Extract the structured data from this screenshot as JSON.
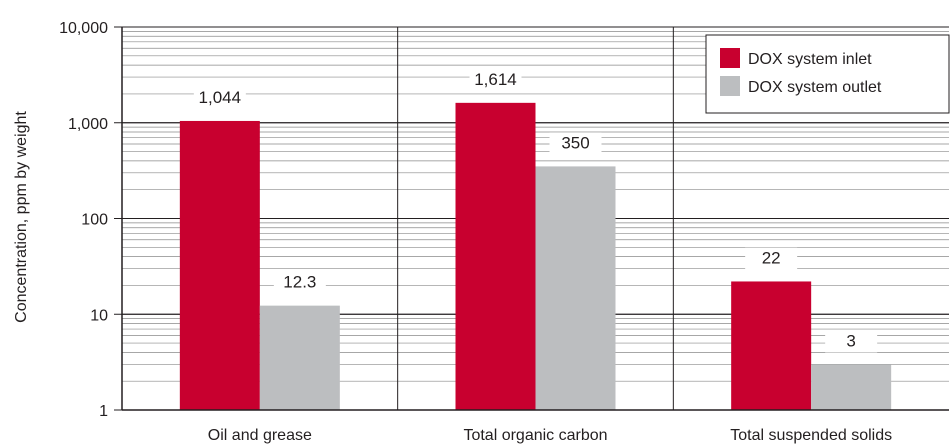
{
  "chart_data": {
    "type": "bar",
    "ylabel": "Concentration, ppm by weight",
    "xlabel": "",
    "title": "",
    "yscale": "log",
    "ylim": [
      1,
      10000
    ],
    "yticks": [
      {
        "value": 1,
        "label": "1"
      },
      {
        "value": 10,
        "label": "10"
      },
      {
        "value": 100,
        "label": "100"
      },
      {
        "value": 1000,
        "label": "1,000"
      },
      {
        "value": 10000,
        "label": "10,000"
      }
    ],
    "categories": [
      "Oil and grease",
      "Total organic carbon",
      "Total suspended solids"
    ],
    "series": [
      {
        "name": "DOX system inlet",
        "color": "#c8002f",
        "values": [
          1044,
          1614,
          22
        ],
        "labels": [
          "1,044",
          "1,614",
          "22"
        ]
      },
      {
        "name": "DOX system outlet",
        "color": "#bcbec0",
        "values": [
          12.3,
          350,
          3
        ],
        "labels": [
          "12.3",
          "350",
          "3"
        ]
      }
    ],
    "grid": true,
    "legend_position": "top-right"
  }
}
